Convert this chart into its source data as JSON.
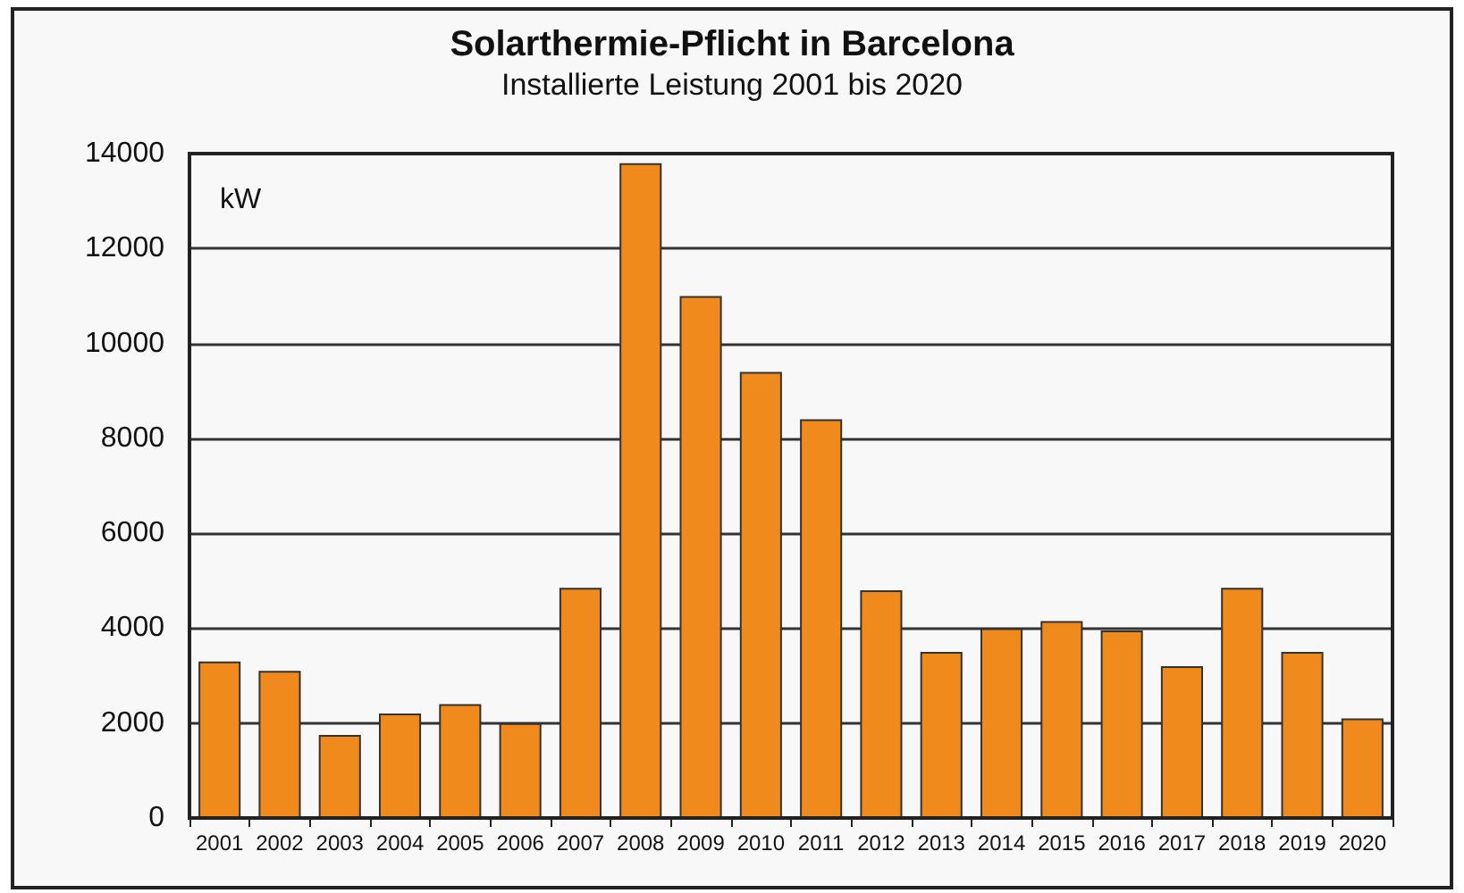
{
  "chart_data": {
    "type": "bar",
    "title": "Solarthermie-Pflicht in Barcelona",
    "subtitle": "Installierte Leistung 2001 bis 2020",
    "ylabel": "kW",
    "categories": [
      "2001",
      "2002",
      "2003",
      "2004",
      "2005",
      "2006",
      "2007",
      "2008",
      "2009",
      "2010",
      "2011",
      "2012",
      "2013",
      "2014",
      "2015",
      "2016",
      "2017",
      "2018",
      "2019",
      "2020"
    ],
    "values": [
      3300,
      3100,
      1750,
      2200,
      2400,
      2000,
      4850,
      13800,
      11000,
      9400,
      8400,
      4800,
      3500,
      4000,
      4150,
      3950,
      3200,
      4850,
      3500,
      2100
    ],
    "color": "#f08a1c",
    "ylim": [
      0,
      14000
    ],
    "yticks": [
      0,
      2000,
      4000,
      6000,
      8000,
      10000,
      12000,
      14000
    ],
    "grid": "y"
  }
}
